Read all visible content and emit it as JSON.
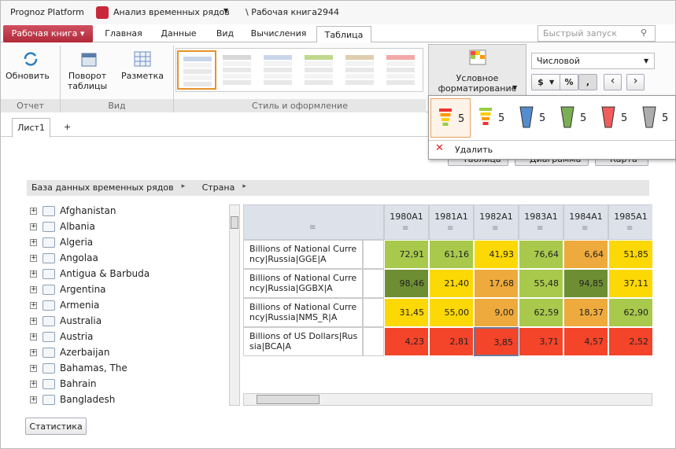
{
  "titlebar": {
    "app": "Prognoz Platform",
    "module": "Анализ временных рядов",
    "document": "\\ Рабочая книга2944"
  },
  "menu_tabs": [
    "Рабочая книга",
    "Главная",
    "Данные",
    "Вид",
    "Вычисления",
    "Таблица"
  ],
  "search_placeholder": "Быстрый запуск",
  "ribbon": {
    "buttons": [
      "Обновить",
      "Поворот таблицы",
      "Разметка"
    ],
    "groups": [
      "Отчет",
      "Вид",
      "Стиль и оформление"
    ],
    "conditional": "Условное форматирование",
    "format": "Числовой",
    "number_buttons": [
      "$",
      "%",
      ","
    ]
  },
  "cf_menu": {
    "items": [
      "5",
      "5",
      "5",
      "5",
      "5",
      "5"
    ],
    "delete": "Удалить"
  },
  "sheet_tabs": [
    "Лист1",
    "+"
  ],
  "view_buttons": [
    "Таблица",
    "Диаграмма",
    "Карта"
  ],
  "breadcrumb": [
    "База данных временных рядов",
    "Страна"
  ],
  "tree": [
    "Afghanistan",
    "Albania",
    "Algeria",
    "Angolaa",
    "Antigua & Barbuda",
    "Argentina",
    "Armenia",
    "Australia",
    "Austria",
    "Azerbaijan",
    "Bahamas, The",
    "Bahrain",
    "Bangladesh"
  ],
  "table": {
    "columns": [
      "1980A1",
      "1981A1",
      "1982A1",
      "1983A1",
      "1984A1",
      "1985A1"
    ],
    "rows": [
      {
        "label": "Billions of National Currency|Russia|GGE|A",
        "cells": [
          "72,91",
          "61,16",
          "41,93",
          "76,64",
          "6,64",
          "51,85"
        ],
        "colors": [
          "#a8c94c",
          "#a8c94c",
          "#fcd804",
          "#a8c94c",
          "#eeaa3c",
          "#fcd804"
        ]
      },
      {
        "label": "Billions of National Currency|Russia|GGBX|A",
        "cells": [
          "98,46",
          "21,40",
          "17,68",
          "55,48",
          "94,85",
          "37,11"
        ],
        "colors": [
          "#6e8e34",
          "#fcd804",
          "#eeaa3c",
          "#a8c94c",
          "#6e8e34",
          "#fcd804"
        ]
      },
      {
        "label": "Billions of National Currency|Russia|NMS_R|A",
        "cells": [
          "31,45",
          "55,00",
          "9,00",
          "62,59",
          "18,37",
          "62,90"
        ],
        "colors": [
          "#fcd804",
          "#fcd804",
          "#eeaa3c",
          "#a8c94c",
          "#eeaa3c",
          "#a8c94c"
        ]
      },
      {
        "label": "Billions of US Dollars|Russia|BCA|A",
        "cells": [
          "4,23",
          "2,81",
          "3,85",
          "3,71",
          "4,57",
          "2,52"
        ],
        "colors": [
          "#f4442a",
          "#f4442a",
          "#f4442a",
          "#f4442a",
          "#f4442a",
          "#f4442a"
        ]
      }
    ]
  },
  "status_button": "Статистика"
}
